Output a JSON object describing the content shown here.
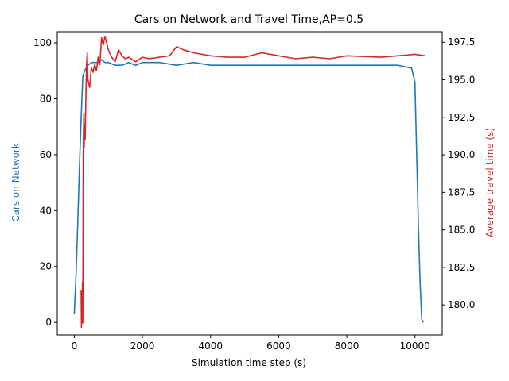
{
  "chart_data": {
    "type": "line",
    "title": "Cars on Network and Travel Time,AP=0.5",
    "xlabel": "Simulation time step (s)",
    "ylabel_left": "Cars on Network",
    "ylabel_right": "Average travel time (s)",
    "xlim": [
      -500,
      10800
    ],
    "ylim_left": [
      -4.5,
      104
    ],
    "ylim_right": [
      178.0,
      198.2
    ],
    "xticks": [
      0,
      2000,
      4000,
      6000,
      8000,
      10000
    ],
    "yticks_left": [
      0,
      20,
      40,
      60,
      80,
      100
    ],
    "yticks_right": [
      180.0,
      182.5,
      185.0,
      187.5,
      190.0,
      192.5,
      195.0,
      197.5
    ],
    "grid": false,
    "colors": {
      "left": "#1f77b4",
      "right": "#d62728"
    },
    "series": [
      {
        "axis": "left",
        "x": [
          0,
          50,
          100,
          150,
          200,
          250,
          300,
          350,
          400,
          500,
          600,
          700,
          800,
          900,
          1000,
          1200,
          1400,
          1600,
          1800,
          2000,
          2500,
          3000,
          3500,
          4000,
          4500,
          5000,
          5500,
          6000,
          6500,
          7000,
          7500,
          8000,
          8500,
          9000,
          9500,
          9900,
          10000,
          10050,
          10100,
          10150,
          10200,
          10250
        ],
        "y": [
          3,
          17,
          35,
          55,
          73,
          88,
          90,
          91,
          92,
          93,
          93,
          93,
          94,
          93,
          93,
          92,
          92,
          93,
          92,
          93,
          93,
          92,
          93,
          92,
          92,
          92,
          92,
          92,
          92,
          92,
          92,
          92,
          92,
          92,
          92,
          91,
          86,
          60,
          35,
          14,
          1,
          0
        ]
      },
      {
        "axis": "right",
        "x": [
          200,
          210,
          220,
          230,
          240,
          250,
          260,
          270,
          280,
          290,
          300,
          320,
          340,
          360,
          380,
          400,
          450,
          500,
          550,
          600,
          650,
          700,
          750,
          800,
          850,
          900,
          1000,
          1100,
          1200,
          1300,
          1400,
          1500,
          1600,
          1800,
          2000,
          2200,
          2500,
          2800,
          3000,
          3200,
          3500,
          4000,
          4500,
          5000,
          5500,
          6000,
          6500,
          7000,
          7500,
          8000,
          9000,
          9500,
          10000,
          10300
        ],
        "y": [
          181.0,
          178.5,
          180.5,
          179.0,
          181.5,
          178.8,
          190.0,
          191.5,
          192.8,
          190.5,
          192.0,
          191.0,
          194.0,
          196.0,
          196.8,
          195.0,
          194.5,
          195.8,
          195.5,
          196.0,
          195.6,
          196.5,
          196.0,
          197.8,
          197.3,
          197.9,
          197.0,
          196.5,
          196.2,
          197.0,
          196.6,
          196.4,
          196.5,
          196.2,
          196.5,
          196.4,
          196.5,
          196.6,
          197.2,
          197.0,
          196.8,
          196.6,
          196.5,
          196.5,
          196.8,
          196.6,
          196.4,
          196.5,
          196.4,
          196.6,
          196.5,
          196.6,
          196.7,
          196.6
        ]
      }
    ]
  }
}
